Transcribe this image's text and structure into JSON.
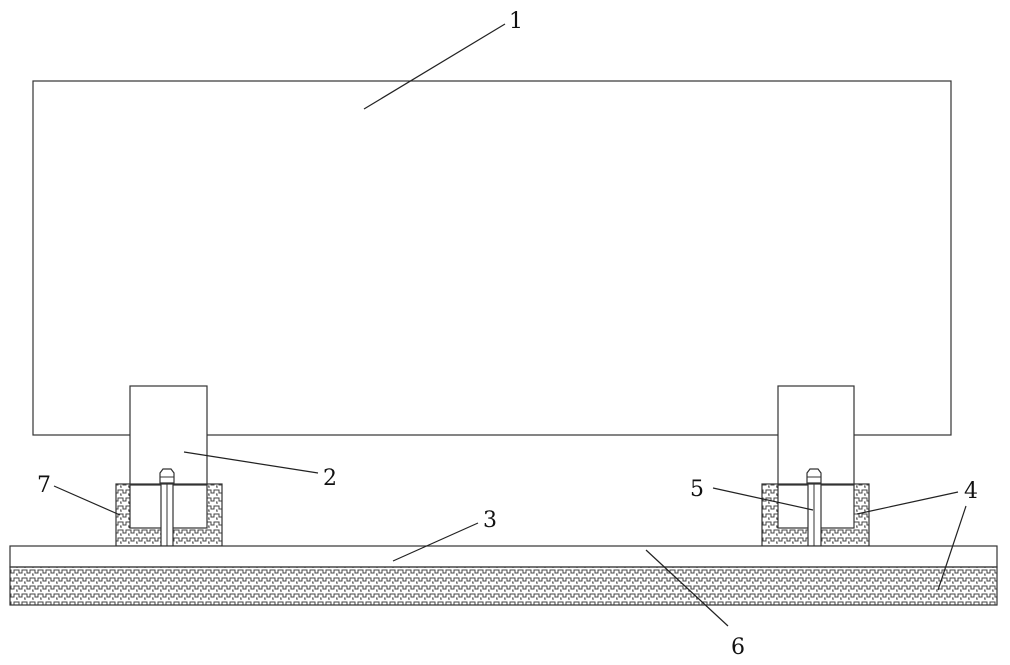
{
  "labels": {
    "l1": "1",
    "l2": "2",
    "l3": "3",
    "l4": "4",
    "l5": "5",
    "l6": "6",
    "l7": "7"
  },
  "colors": {
    "stroke": "#333333",
    "background": "#ffffff",
    "hatch": "#444444"
  }
}
